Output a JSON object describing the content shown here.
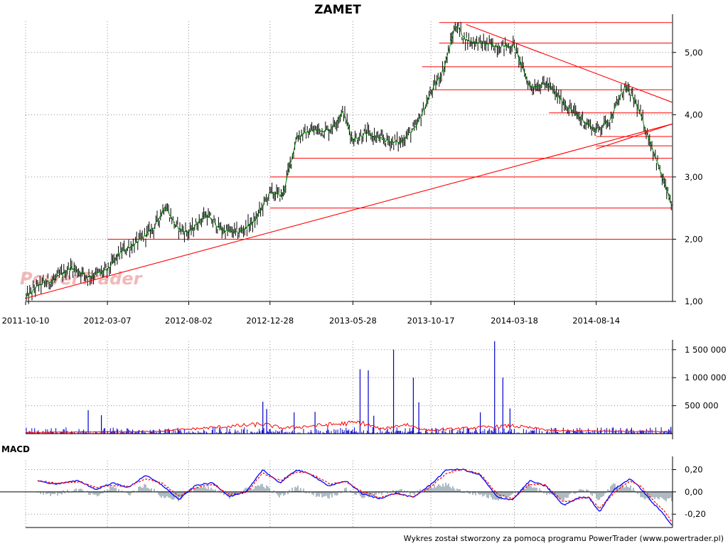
{
  "title": "ZAMET",
  "footer": "Wykres został stworzony za pomocą programu PowerTrader (www.powertrader.pl)",
  "watermark": "PowerTrader",
  "colors": {
    "price": "#000000",
    "price_smooth": "#008000",
    "trend": "#ff0000",
    "volume": "#0000cc",
    "volume_avg": "#ff0000",
    "macd": "#0000ff",
    "signal": "#ff0000",
    "hist": "#8c9ea8",
    "watermark": "#f2b8b8"
  },
  "chart_data": [
    {
      "type": "line",
      "panel": "price",
      "title": "ZAMET",
      "x_ticks": [
        "2011-10-10",
        "2012-03-07",
        "2012-08-02",
        "2012-12-28",
        "2013-05-28",
        "2013-10-17",
        "2014-03-18",
        "2014-08-14"
      ],
      "y_ticks": [
        "1,00",
        "2,00",
        "3,00",
        "4,00",
        "5,00"
      ],
      "ylim": [
        1.0,
        5.5
      ],
      "grid": true,
      "series": [
        {
          "x": [
            "2011-10-10",
            "2011-11-01",
            "2011-12-01",
            "2012-01-01",
            "2012-02-01",
            "2012-03-07",
            "2012-04-01",
            "2012-05-01",
            "2012-06-01",
            "2012-06-20",
            "2012-07-10",
            "2012-08-02",
            "2012-09-01",
            "2012-10-01",
            "2012-11-01",
            "2012-12-01",
            "2012-12-28",
            "2013-01-20",
            "2013-02-15",
            "2013-03-15",
            "2013-04-15",
            "2013-05-10",
            "2013-05-28",
            "2013-06-20",
            "2013-07-20",
            "2013-08-20",
            "2013-09-20",
            "2013-10-17",
            "2013-11-10",
            "2013-12-01",
            "2013-12-20",
            "2014-01-15",
            "2014-02-15",
            "2014-03-18",
            "2014-04-15",
            "2014-05-15",
            "2014-06-15",
            "2014-07-15",
            "2014-08-14",
            "2014-09-10",
            "2014-10-05",
            "2014-10-25",
            "2014-11-15",
            "2014-12-01",
            "2014-12-15",
            "2014-12-30"
          ],
          "y": [
            1.05,
            1.25,
            1.35,
            1.55,
            1.4,
            1.5,
            1.8,
            1.95,
            2.2,
            2.55,
            2.2,
            2.1,
            2.4,
            2.15,
            2.1,
            2.3,
            2.75,
            2.7,
            3.65,
            3.75,
            3.75,
            4.05,
            3.6,
            3.7,
            3.6,
            3.55,
            3.8,
            4.35,
            4.75,
            5.45,
            5.2,
            5.15,
            5.1,
            5.1,
            4.45,
            4.5,
            4.2,
            3.95,
            3.75,
            3.95,
            4.45,
            4.2,
            3.7,
            3.3,
            2.9,
            2.55
          ]
        }
      ],
      "trendlines": [
        {
          "p1": [
            "2011-10-10",
            1.05
          ],
          "p2": [
            "2014-12-30",
            3.85
          ]
        },
        {
          "p1": [
            "2013-12-20",
            5.45
          ],
          "p2": [
            "2014-12-30",
            4.2
          ]
        },
        {
          "p1": [
            "2014-08-14",
            3.45
          ],
          "p2": [
            "2014-12-30",
            3.85
          ]
        }
      ],
      "levels": [
        {
          "y": 2.0,
          "from": "2012-03-07",
          "to": "2014-12-30"
        },
        {
          "y": 2.5,
          "from": "2012-12-28",
          "to": "2014-12-30"
        },
        {
          "y": 3.0,
          "from": "2012-12-28",
          "to": "2014-12-30"
        },
        {
          "y": 3.3,
          "from": "2013-02-10",
          "to": "2014-12-30"
        },
        {
          "y": 3.5,
          "from": "2014-08-14",
          "to": "2014-12-30"
        },
        {
          "y": 3.65,
          "from": "2014-08-14",
          "to": "2014-12-30"
        },
        {
          "y": 4.03,
          "from": "2014-05-20",
          "to": "2014-12-30"
        },
        {
          "y": 4.4,
          "from": "2013-10-17",
          "to": "2014-12-30"
        },
        {
          "y": 4.77,
          "from": "2013-10-01",
          "to": "2014-12-30"
        },
        {
          "y": 5.15,
          "from": "2013-11-01",
          "to": "2014-12-30"
        },
        {
          "y": 5.48,
          "from": "2013-11-01",
          "to": "2014-12-30"
        }
      ]
    },
    {
      "type": "bar",
      "panel": "volume",
      "y_ticks": [
        "500 000",
        "1 000 000",
        "1 500 000"
      ],
      "ylim": [
        0,
        1650000
      ],
      "grid": true,
      "spikes": [
        {
          "x": "2012-02-01",
          "value": 420000
        },
        {
          "x": "2012-02-25",
          "value": 330000
        },
        {
          "x": "2012-12-15",
          "value": 570000
        },
        {
          "x": "2012-12-22",
          "value": 440000
        },
        {
          "x": "2013-02-10",
          "value": 380000
        },
        {
          "x": "2013-03-20",
          "value": 390000
        },
        {
          "x": "2013-06-10",
          "value": 1150000
        },
        {
          "x": "2013-06-25",
          "value": 1130000
        },
        {
          "x": "2013-07-05",
          "value": 320000
        },
        {
          "x": "2013-08-10",
          "value": 1500000
        },
        {
          "x": "2013-09-15",
          "value": 1000000
        },
        {
          "x": "2013-09-25",
          "value": 560000
        },
        {
          "x": "2014-01-15",
          "value": 380000
        },
        {
          "x": "2014-02-10",
          "value": 1650000
        },
        {
          "x": "2014-02-25",
          "value": 1000000
        },
        {
          "x": "2014-03-10",
          "value": 450000
        },
        {
          "x": "2014-12-28",
          "value": 120000
        }
      ],
      "avg": {
        "x": [
          "2011-10-10",
          "2012-06-01",
          "2012-12-15",
          "2013-01-20",
          "2013-06-10",
          "2013-07-20",
          "2013-09-01",
          "2013-10-10",
          "2014-02-01",
          "2014-03-15",
          "2014-06-01",
          "2014-12-30"
        ],
        "y": [
          20000,
          40000,
          170000,
          100000,
          200000,
          80000,
          170000,
          60000,
          120000,
          140000,
          50000,
          40000
        ]
      }
    },
    {
      "type": "line",
      "panel": "macd",
      "title": "MACD",
      "y_ticks": [
        "-0,20",
        "0,00",
        "0,20"
      ],
      "ylim": [
        -0.32,
        0.28
      ],
      "grid": true,
      "series": [
        {
          "name": "MACD",
          "x": [
            "2011-11-01",
            "2011-12-01",
            "2012-01-15",
            "2012-02-15",
            "2012-03-15",
            "2012-04-15",
            "2012-05-15",
            "2012-06-15",
            "2012-07-15",
            "2012-08-15",
            "2012-09-15",
            "2012-10-15",
            "2012-11-15",
            "2012-12-15",
            "2013-01-15",
            "2013-02-15",
            "2013-03-15",
            "2013-04-15",
            "2013-05-15",
            "2013-06-15",
            "2013-07-15",
            "2013-08-15",
            "2013-09-15",
            "2013-10-15",
            "2013-11-15",
            "2013-12-15",
            "2014-01-15",
            "2014-02-15",
            "2014-03-15",
            "2014-04-15",
            "2014-05-15",
            "2014-06-15",
            "2014-07-15",
            "2014-08-01",
            "2014-08-20",
            "2014-09-15",
            "2014-10-15",
            "2014-11-05",
            "2014-11-25",
            "2014-12-15",
            "2014-12-30"
          ],
          "y": [
            0.1,
            0.07,
            0.1,
            0.02,
            0.08,
            0.04,
            0.15,
            0.06,
            -0.07,
            0.06,
            0.08,
            -0.04,
            0.0,
            0.2,
            0.08,
            0.2,
            0.15,
            0.05,
            0.1,
            -0.02,
            -0.06,
            -0.01,
            -0.05,
            0.06,
            0.2,
            0.2,
            0.15,
            -0.05,
            -0.07,
            0.1,
            0.05,
            -0.12,
            -0.05,
            -0.05,
            -0.18,
            0.02,
            0.12,
            0.02,
            -0.1,
            -0.2,
            -0.3
          ]
        },
        {
          "name": "Signal",
          "x": [
            "2011-11-01",
            "2011-12-01",
            "2012-01-15",
            "2012-02-15",
            "2012-03-15",
            "2012-04-15",
            "2012-05-15",
            "2012-06-15",
            "2012-07-15",
            "2012-08-15",
            "2012-09-15",
            "2012-10-15",
            "2012-11-15",
            "2012-12-15",
            "2013-01-15",
            "2013-02-15",
            "2013-03-15",
            "2013-04-15",
            "2013-05-15",
            "2013-06-15",
            "2013-07-15",
            "2013-08-15",
            "2013-09-15",
            "2013-10-15",
            "2013-11-15",
            "2013-12-15",
            "2014-01-15",
            "2014-02-15",
            "2014-03-15",
            "2014-04-15",
            "2014-05-15",
            "2014-06-15",
            "2014-07-15",
            "2014-08-01",
            "2014-08-20",
            "2014-09-15",
            "2014-10-15",
            "2014-11-05",
            "2014-11-25",
            "2014-12-15",
            "2014-12-30"
          ],
          "y": [
            0.1,
            0.08,
            0.09,
            0.04,
            0.06,
            0.05,
            0.12,
            0.08,
            -0.04,
            0.04,
            0.07,
            -0.02,
            -0.01,
            0.17,
            0.1,
            0.18,
            0.16,
            0.07,
            0.09,
            0.0,
            -0.05,
            -0.02,
            -0.04,
            0.04,
            0.17,
            0.2,
            0.16,
            -0.02,
            -0.06,
            0.07,
            0.06,
            -0.09,
            -0.06,
            -0.05,
            -0.15,
            -0.01,
            0.1,
            0.04,
            -0.07,
            -0.17,
            -0.27
          ]
        }
      ]
    }
  ]
}
